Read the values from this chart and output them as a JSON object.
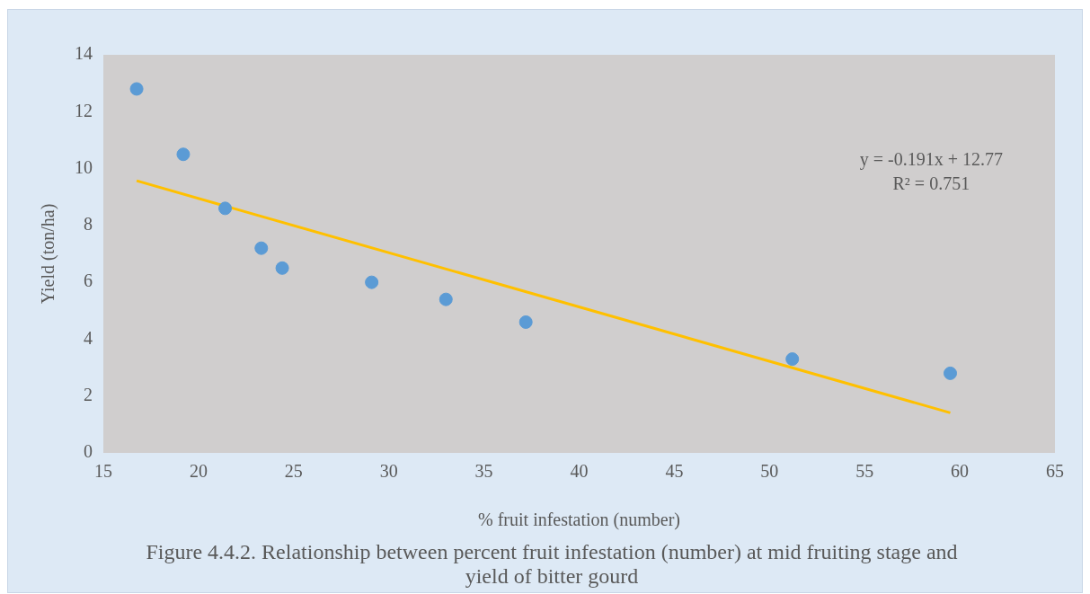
{
  "chart_data": {
    "type": "scatter",
    "title": "Figure 4.4.2. Relationship between percent fruit infestation (number) at mid fruiting stage and yield of bitter gourd",
    "xlabel": "% fruit infestation (number)",
    "ylabel": "Yield (ton/ha)",
    "annotations": [
      "y = -0.191x + 12.77",
      "R² = 0.751"
    ],
    "series": [
      {
        "marker": "circle",
        "color": "#5b9bd5",
        "x": [
          16.75,
          19.2,
          21.4,
          23.3,
          24.4,
          29.1,
          33,
          37.2,
          51.2,
          59.5
        ],
        "values": [
          12.8,
          10.5,
          8.6,
          7.2,
          6.5,
          6,
          5.4,
          4.6,
          3.3,
          2.8
        ]
      },
      {
        "type": "line",
        "marker": "none",
        "color": "#ffc000",
        "x": [
          16.75,
          59.5
        ],
        "values": [
          9.57,
          1.41
        ]
      }
    ],
    "xlim": [
      15,
      65
    ],
    "xticks": [
      15,
      20,
      25,
      30,
      35,
      40,
      45,
      50,
      55,
      60,
      65
    ],
    "ylim": [
      0,
      14
    ],
    "yticks": [
      0,
      2,
      4,
      6,
      8,
      10,
      12,
      14
    ],
    "grid": false,
    "legend": false
  }
}
